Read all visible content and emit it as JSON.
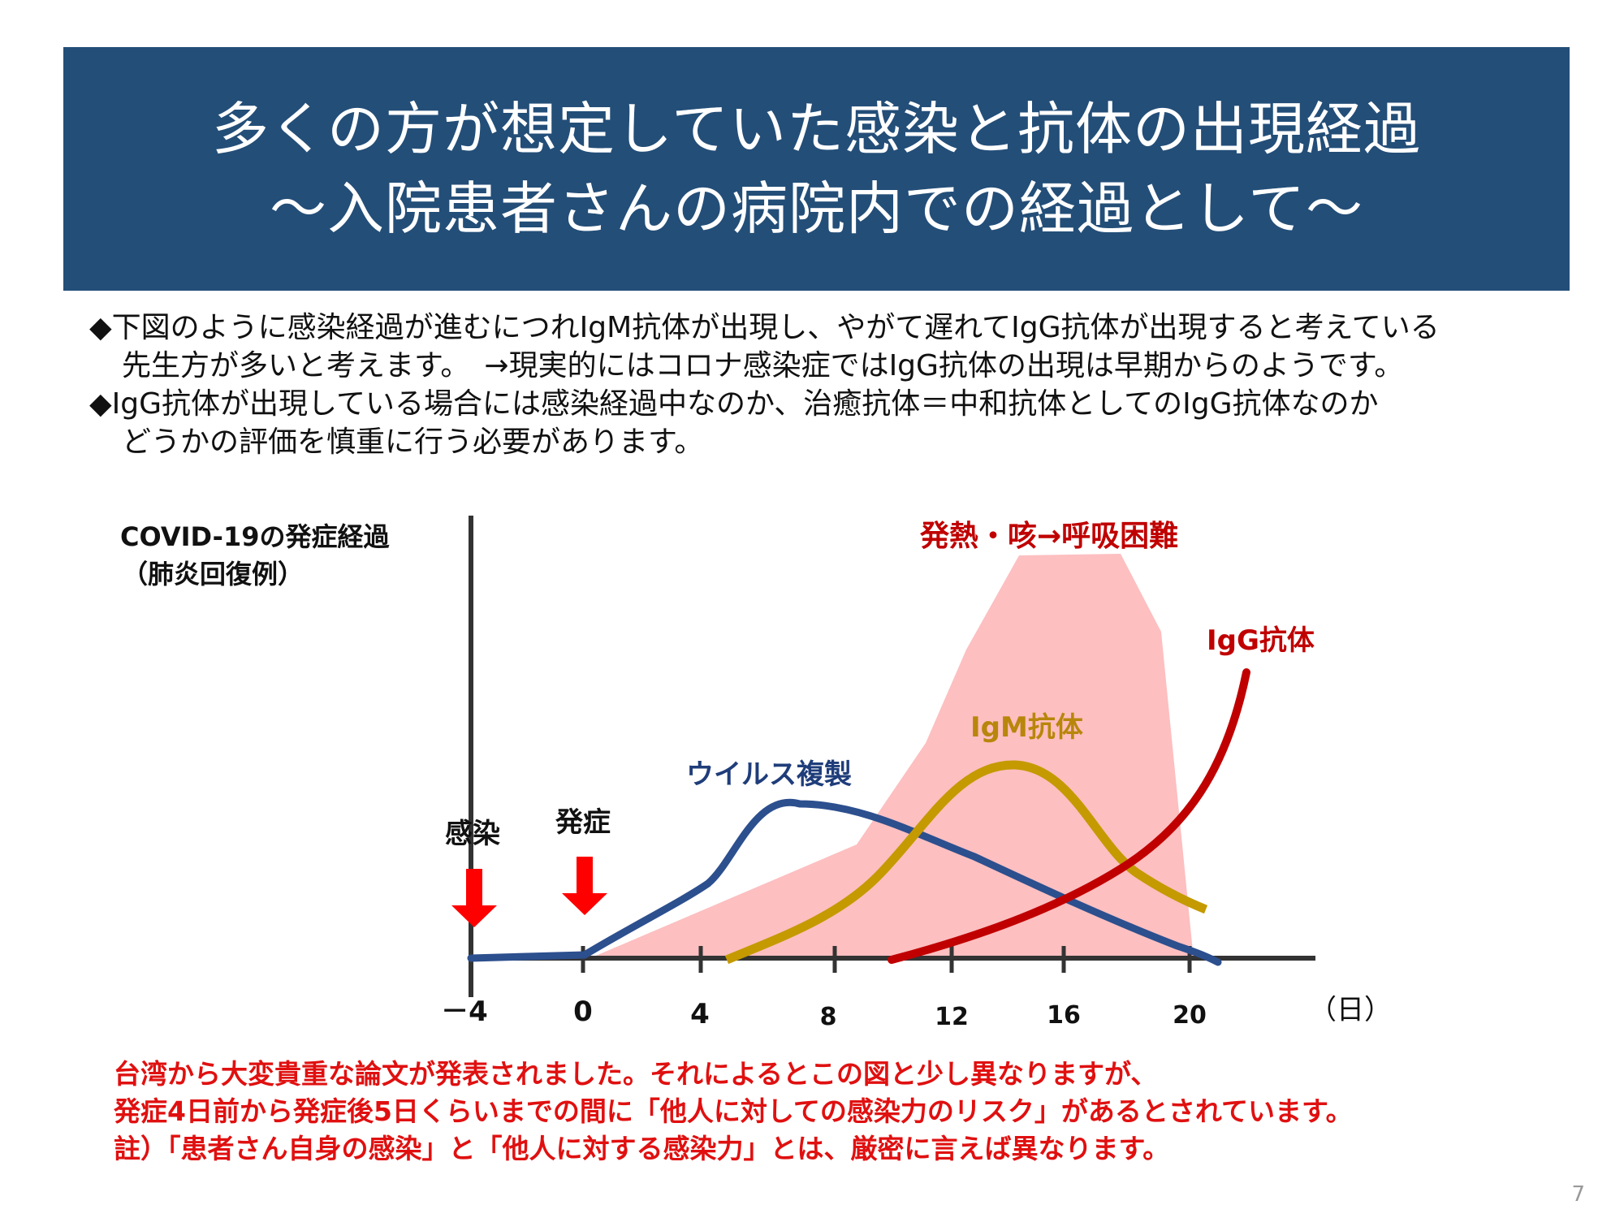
{
  "title": {
    "line1": "多くの方が想定していた感染と抗体の出現経過",
    "line2": "～入院患者さんの病院内での経過として～"
  },
  "bullets": {
    "line1": "◆下図のように感染経過が進むにつれIgM抗体が出現し、やがて遅れてIgG抗体が出現すると考えている",
    "line2": "先生方が多いと考えます。　→現実的にはコロナ感染症ではIgG抗体の出現は早期からのようです。",
    "line3": "◆IgG抗体が出現している場合には感染経過中なのか、治癒抗体＝中和抗体としてのIgG抗体なのか",
    "line4": "どうかの評価を慎重に行う必要があります。"
  },
  "diagram": {
    "title_line1": "COVID-19の発症経過",
    "title_line2": "（肺炎回復例）",
    "symptoms_label": "発熱・咳→呼吸困難",
    "igg_label": "IgG抗体",
    "igm_label": "IgM抗体",
    "virus_label": "ウイルス複製",
    "infection_label": "感染",
    "onset_label": "発症",
    "x_unit": "（日）",
    "x_ticks": [
      "－4",
      "0",
      "4",
      "8",
      "12",
      "16",
      "20"
    ],
    "colors": {
      "symptoms_fill": "#fdbfc0",
      "virus": "#2c4f8e",
      "igm": "#c49a00",
      "igg": "#c00000",
      "arrow": "#ff0000",
      "axis": "#333333"
    }
  },
  "footer": {
    "line1": "台湾から大変貴重な論文が発表されました。それによるとこの図と少し異なりますが、",
    "line2": "発症4日前から発症後5日くらいまでの間に「他人に対しての感染力のリスク」があるとされています。",
    "line3": "註）「患者さん自身の感染」と「他人に対する感染力」とは、厳密に言えば異なります。"
  },
  "page_number": "7"
}
